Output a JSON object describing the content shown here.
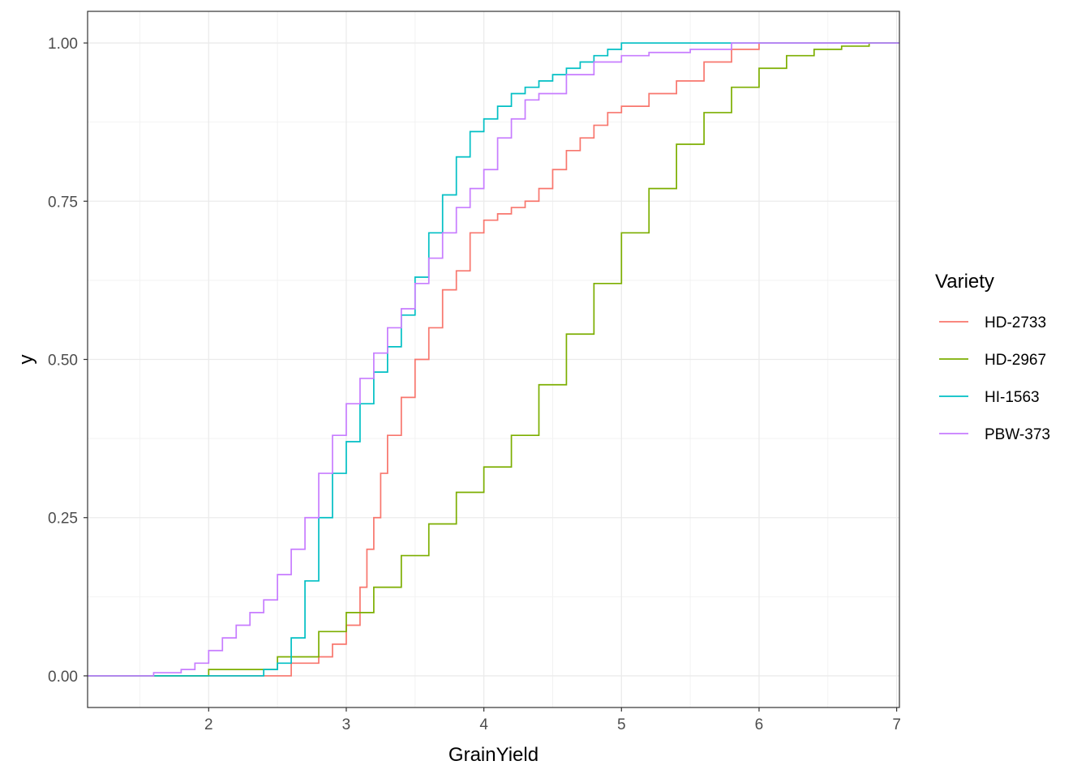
{
  "chart_data": {
    "type": "line",
    "title": "",
    "xlabel": "GrainYield",
    "ylabel": "y",
    "xlim": [
      1.12,
      7.02
    ],
    "ylim": [
      -0.05,
      1.05
    ],
    "x_ticks": [
      2,
      3,
      4,
      5,
      6,
      7
    ],
    "x_tick_labels": [
      "2",
      "3",
      "4",
      "5",
      "6",
      "7"
    ],
    "y_ticks": [
      0,
      0.25,
      0.5,
      0.75,
      1.0
    ],
    "y_tick_labels": [
      "0.00",
      "0.25",
      "0.50",
      "0.75",
      "1.00"
    ],
    "grid": true,
    "legend": {
      "title": "Variety",
      "placement": "right"
    },
    "series": [
      {
        "name": "HD-2733",
        "color": "#F8766D",
        "x": [
          2.0,
          2.5,
          2.6,
          2.8,
          2.9,
          3.0,
          3.1,
          3.15,
          3.2,
          3.25,
          3.3,
          3.4,
          3.5,
          3.6,
          3.7,
          3.8,
          3.9,
          4.0,
          4.1,
          4.2,
          4.3,
          4.4,
          4.5,
          4.6,
          4.7,
          4.8,
          4.9,
          5.0,
          5.2,
          5.4,
          5.6,
          5.8,
          6.0
        ],
        "y": [
          0.0,
          0.0,
          0.02,
          0.03,
          0.05,
          0.08,
          0.14,
          0.2,
          0.25,
          0.32,
          0.38,
          0.44,
          0.5,
          0.55,
          0.61,
          0.64,
          0.7,
          0.72,
          0.73,
          0.74,
          0.75,
          0.77,
          0.8,
          0.83,
          0.85,
          0.87,
          0.89,
          0.9,
          0.92,
          0.94,
          0.97,
          0.99,
          1.0
        ]
      },
      {
        "name": "HD-2967",
        "color": "#7CAE00",
        "x": [
          1.8,
          2.0,
          2.5,
          2.8,
          3.0,
          3.2,
          3.4,
          3.6,
          3.8,
          4.0,
          4.2,
          4.4,
          4.6,
          4.8,
          5.0,
          5.2,
          5.4,
          5.6,
          5.8,
          6.0,
          6.2,
          6.4,
          6.6,
          6.8,
          7.0
        ],
        "y": [
          0.0,
          0.01,
          0.03,
          0.07,
          0.1,
          0.14,
          0.19,
          0.24,
          0.29,
          0.33,
          0.38,
          0.46,
          0.54,
          0.62,
          0.7,
          0.77,
          0.84,
          0.89,
          0.93,
          0.96,
          0.98,
          0.99,
          0.995,
          1.0,
          1.0
        ]
      },
      {
        "name": "HI-1563",
        "color": "#00BFC4",
        "x": [
          2.3,
          2.4,
          2.5,
          2.6,
          2.7,
          2.8,
          2.9,
          3.0,
          3.1,
          3.2,
          3.3,
          3.4,
          3.5,
          3.6,
          3.7,
          3.8,
          3.9,
          4.0,
          4.1,
          4.2,
          4.3,
          4.4,
          4.5,
          4.6,
          4.7,
          4.8,
          4.9,
          5.0,
          5.2,
          5.5,
          6.0,
          7.0
        ],
        "y": [
          0.0,
          0.01,
          0.02,
          0.06,
          0.15,
          0.25,
          0.32,
          0.37,
          0.43,
          0.48,
          0.52,
          0.57,
          0.63,
          0.7,
          0.76,
          0.82,
          0.86,
          0.88,
          0.9,
          0.92,
          0.93,
          0.94,
          0.95,
          0.96,
          0.97,
          0.98,
          0.99,
          1.0,
          1.0,
          1.0,
          1.0,
          1.0
        ]
      },
      {
        "name": "PBW-373",
        "color": "#C77CFF",
        "x": [
          1.4,
          1.6,
          1.8,
          1.9,
          2.0,
          2.1,
          2.2,
          2.3,
          2.4,
          2.5,
          2.6,
          2.7,
          2.8,
          2.9,
          3.0,
          3.1,
          3.2,
          3.3,
          3.4,
          3.5,
          3.6,
          3.7,
          3.8,
          3.9,
          4.0,
          4.1,
          4.2,
          4.3,
          4.4,
          4.6,
          4.8,
          5.0,
          5.2,
          5.5,
          5.8,
          6.0,
          7.0
        ],
        "y": [
          0.0,
          0.005,
          0.01,
          0.02,
          0.04,
          0.06,
          0.08,
          0.1,
          0.12,
          0.16,
          0.2,
          0.25,
          0.32,
          0.38,
          0.43,
          0.47,
          0.51,
          0.55,
          0.58,
          0.62,
          0.66,
          0.7,
          0.74,
          0.77,
          0.8,
          0.85,
          0.88,
          0.91,
          0.92,
          0.95,
          0.97,
          0.98,
          0.985,
          0.99,
          1.0,
          1.0,
          1.0
        ]
      }
    ]
  }
}
